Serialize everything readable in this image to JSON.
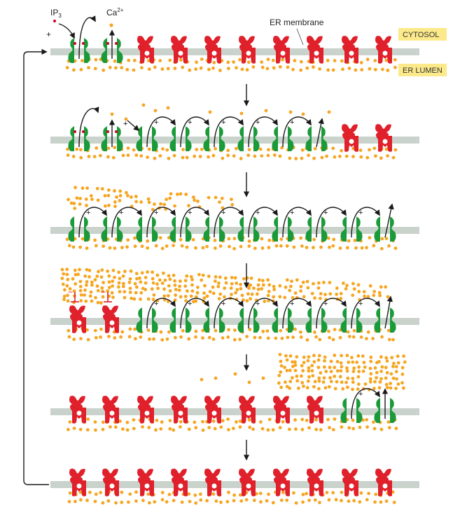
{
  "labels": {
    "ip3": "IP",
    "ip3_sub": "3",
    "ca": "Ca",
    "ca_sup": "2+",
    "er_membrane": "ER membrane",
    "cytosol": "CYTOSOL",
    "er_lumen": "ER LUMEN",
    "plus": "+"
  },
  "colors": {
    "open_channel": "#1b9a3a",
    "closed_channel": "#e0202a",
    "calcium": "#f5a623",
    "membrane": "#c9d3cc",
    "tag_bg": "#fbe98a",
    "arrow": "#1a1a1a",
    "ip3_dot": "#d0021b"
  },
  "rows": [
    {
      "states": [
        "open-ip3",
        "open-ip3",
        "closed",
        "closed",
        "closed",
        "closed",
        "closed",
        "closed",
        "closed",
        "closed"
      ]
    },
    {
      "states": [
        "open-ip3",
        "open-ip3",
        "open",
        "open",
        "open",
        "open",
        "open",
        "open",
        "closed",
        "closed"
      ]
    },
    {
      "states": [
        "open",
        "open",
        "open",
        "open",
        "open",
        "open",
        "open",
        "open",
        "open",
        "open"
      ]
    },
    {
      "states": [
        "inhibited",
        "inhibited",
        "open",
        "open",
        "open",
        "open",
        "open",
        "open",
        "open",
        "open"
      ]
    },
    {
      "states": [
        "closed",
        "closed",
        "closed",
        "closed",
        "closed",
        "closed",
        "closed",
        "closed",
        "open",
        "open"
      ]
    },
    {
      "states": [
        "closed",
        "closed",
        "closed",
        "closed",
        "closed",
        "closed",
        "closed",
        "closed",
        "closed",
        "closed"
      ]
    }
  ]
}
